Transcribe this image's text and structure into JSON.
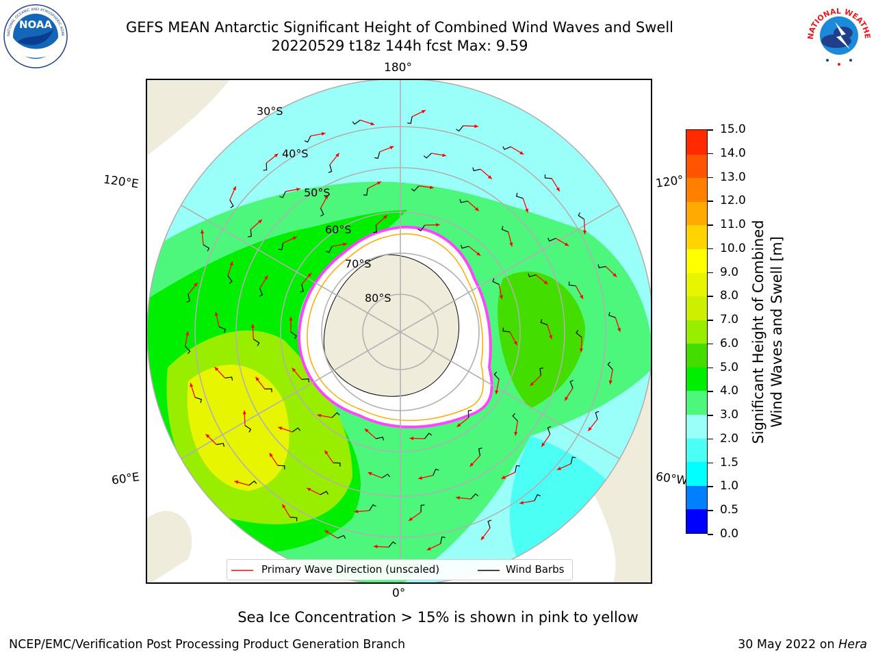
{
  "header": {
    "title_line1": "GEFS MEAN Antarctic Significant Height of Combined Wind Waves and Swell",
    "title_line2": "20220529 t18z 144h fcst   Max: 9.59"
  },
  "logos": {
    "left": {
      "text": "NOAA",
      "ring_text": "NATIONAL OCEANIC AND ATMOSPHERIC ADMINISTRATION · U.S. DEPARTMENT OF COMMERCE"
    },
    "right": {
      "ring_text": "NATIONAL WEATHER SERVICE"
    }
  },
  "map": {
    "projection": "south-polar-stereographic",
    "longitude_labels": {
      "top": "180°",
      "bottom": "0°",
      "left_upper": "120°E",
      "left_lower": "60°E",
      "right_upper": "120°",
      "right_lower": "60°W"
    },
    "latitude_labels": [
      "30°S",
      "40°S",
      "50°S",
      "60°S",
      "70°S",
      "80°S"
    ],
    "colors": {
      "land": "#efecdc",
      "ice_shelf": "#ffffff",
      "graticule": "#b0b0b0",
      "coast": "#000000",
      "wave_arrow": "#ff0000",
      "wind_barb": "#000000",
      "sea_ice_edge": [
        "#ff44ff",
        "#ffaa00",
        "#ffff00"
      ]
    }
  },
  "legend": {
    "primary_wave": "Primary Wave Direction (unscaled)",
    "wind_barbs": "Wind Barbs"
  },
  "colorbar": {
    "label_line1": "Significant Height of Combined",
    "label_line2": "Wind Waves and Swell [m]",
    "ticks": [
      "0.0",
      "0.5",
      "1.0",
      "1.5",
      "2.0",
      "3.0",
      "4.0",
      "5.0",
      "6.0",
      "7.0",
      "8.0",
      "9.0",
      "10.0",
      "11.0",
      "12.0",
      "13.0",
      "14.0",
      "15.0"
    ],
    "colors": [
      "#0000ff",
      "#0080ff",
      "#00ffff",
      "#4cfff5",
      "#9bfff9",
      "#4cf77c",
      "#00ee00",
      "#44dd00",
      "#99ee00",
      "#ccf000",
      "#e8f500",
      "#ffff00",
      "#ffd400",
      "#ffaa00",
      "#ff8000",
      "#ff5500",
      "#ff2a00"
    ]
  },
  "footer": {
    "note": "Sea Ice Concentration > 15% is shown in pink to yellow",
    "left": "NCEP/EMC/Verification Post Processing Product Generation Branch",
    "right_date": "30 May 2022 on",
    "right_host": "Hera"
  }
}
